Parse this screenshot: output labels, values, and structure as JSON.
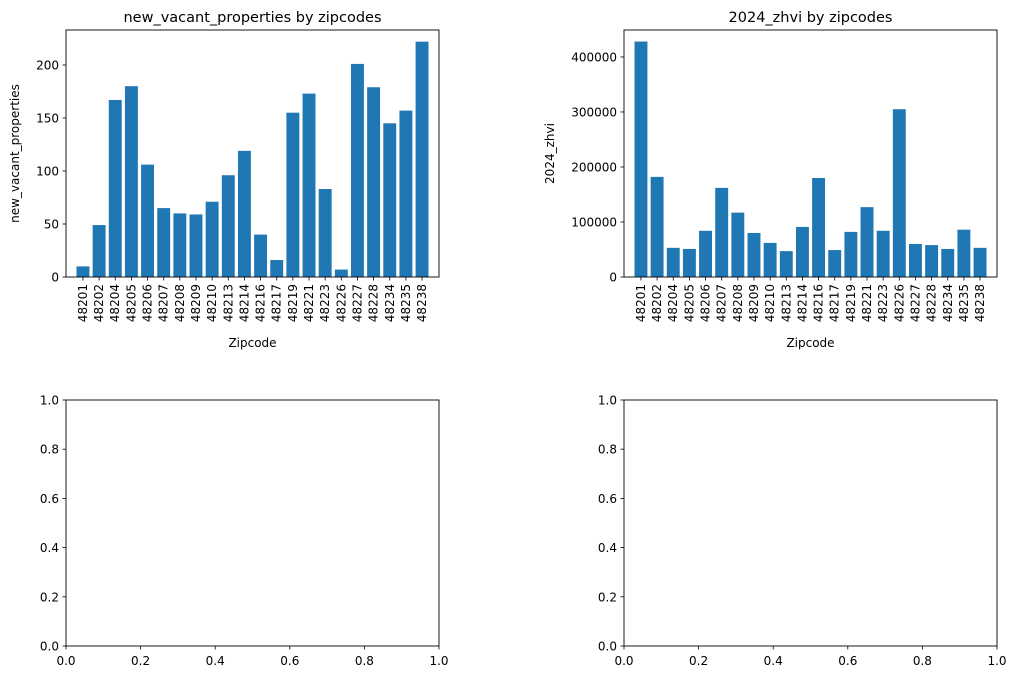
{
  "chart_data": [
    {
      "type": "bar",
      "title": "new_vacant_properties by zipcodes",
      "xlabel": "Zipcode",
      "ylabel": "new_vacant_properties",
      "categories": [
        "48201",
        "48202",
        "48204",
        "48205",
        "48206",
        "48207",
        "48208",
        "48209",
        "48210",
        "48213",
        "48214",
        "48216",
        "48217",
        "48219",
        "48221",
        "48223",
        "48226",
        "48227",
        "48228",
        "48234",
        "48235",
        "48238"
      ],
      "values": [
        10,
        49,
        167,
        180,
        106,
        65,
        60,
        59,
        71,
        96,
        119,
        40,
        16,
        155,
        173,
        83,
        7,
        201,
        179,
        145,
        157,
        222
      ],
      "ylim": [
        0,
        233
      ],
      "yticks": [
        0,
        50,
        100,
        150,
        200
      ],
      "ytick_labels": [
        "0",
        "50",
        "100",
        "150",
        "200"
      ],
      "color": "#1f77b4",
      "grid": false
    },
    {
      "type": "bar",
      "title": "2024_zhvi by zipcodes",
      "xlabel": "Zipcode",
      "ylabel": "2024_zhvi",
      "categories": [
        "48201",
        "48202",
        "48204",
        "48205",
        "48206",
        "48207",
        "48208",
        "48209",
        "48210",
        "48213",
        "48214",
        "48216",
        "48217",
        "48219",
        "48221",
        "48223",
        "48226",
        "48227",
        "48228",
        "48234",
        "48235",
        "48238"
      ],
      "values": [
        428000,
        182000,
        53000,
        51000,
        84000,
        162000,
        117000,
        80000,
        62000,
        47000,
        91000,
        180000,
        49000,
        82000,
        127000,
        84000,
        305000,
        60000,
        58000,
        51000,
        86000,
        53000
      ],
      "ylim": [
        0,
        449000
      ],
      "yticks": [
        0,
        100000,
        200000,
        300000,
        400000
      ],
      "ytick_labels": [
        "0",
        "100000",
        "200000",
        "300000",
        "400000"
      ],
      "color": "#1f77b4",
      "grid": false
    },
    {
      "type": "empty",
      "title": "",
      "xlabel": "",
      "ylabel": "",
      "xlim": [
        0,
        1
      ],
      "ylim": [
        0,
        1
      ],
      "xticks": [
        0,
        0.2,
        0.4,
        0.6,
        0.8,
        1.0
      ],
      "xtick_labels": [
        "0.0",
        "0.2",
        "0.4",
        "0.6",
        "0.8",
        "1.0"
      ],
      "yticks": [
        0,
        0.2,
        0.4,
        0.6,
        0.8,
        1.0
      ],
      "ytick_labels": [
        "0.0",
        "0.2",
        "0.4",
        "0.6",
        "0.8",
        "1.0"
      ]
    },
    {
      "type": "empty",
      "title": "",
      "xlabel": "",
      "ylabel": "",
      "xlim": [
        0,
        1
      ],
      "ylim": [
        0,
        1
      ],
      "xticks": [
        0,
        0.2,
        0.4,
        0.6,
        0.8,
        1.0
      ],
      "xtick_labels": [
        "0.0",
        "0.2",
        "0.4",
        "0.6",
        "0.8",
        "1.0"
      ],
      "yticks": [
        0,
        0.2,
        0.4,
        0.6,
        0.8,
        1.0
      ],
      "ytick_labels": [
        "0.0",
        "0.2",
        "0.4",
        "0.6",
        "0.8",
        "1.0"
      ]
    }
  ]
}
